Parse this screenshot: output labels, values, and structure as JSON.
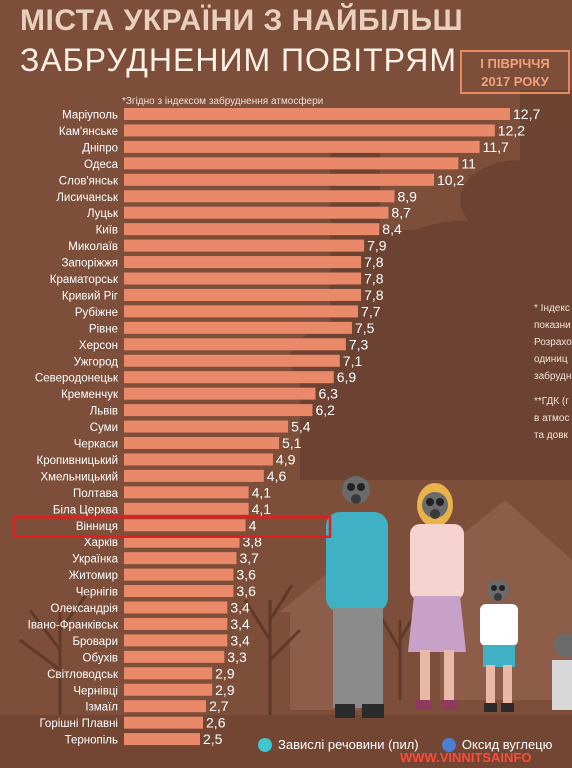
{
  "header": {
    "title_line1": "МІСТА УКРАЇНИ З НАЙБІЛЬШ",
    "title_line2": "ЗАБРУДНЕНИМ ПОВІТРЯМ",
    "badge_line1": "І ПІВРІЧЧЯ",
    "badge_line2": "2017 РОКУ",
    "note": "*Згідно з індексом забруднення атмосфери"
  },
  "side_notes": [
    "* Індекс",
    "показни",
    "Розрахо",
    "одиниц",
    "забрудн",
    "**ГДК (г",
    "в атмос",
    "та довк"
  ],
  "legend": {
    "items": [
      {
        "label": "Завислі речовини (пил)",
        "color": "#3fc6cf"
      },
      {
        "label": "Оксид вуглецю",
        "color": "#4b7fd1"
      }
    ]
  },
  "watermark": "WWW.VINNITSAINFO",
  "colors": {
    "bar": "#e9896a",
    "background": "#7d4f3a",
    "highlight": "#e01e1e",
    "text": "#ffffff"
  },
  "highlight_index": 25,
  "chart_data": {
    "type": "bar",
    "orientation": "horizontal",
    "categories": [
      "Маріуполь",
      "Кам'янське",
      "Дніпро",
      "Одеса",
      "Слов'янськ",
      "Лисичанськ",
      "Луцьк",
      "Київ",
      "Миколаїв",
      "Запоріжжя",
      "Краматорськ",
      "Кривий Ріг",
      "Рубіжне",
      "Рівне",
      "Херсон",
      "Ужгород",
      "Северодонецьк",
      "Кременчук",
      "Львів",
      "Суми",
      "Черкаси",
      "Кропивницький",
      "Хмельницький",
      "Полтава",
      "Біла Церква",
      "Вінниця",
      "Харків",
      "Українка",
      "Житомир",
      "Чернігів",
      "Олександрія",
      "Івано-Франківськ",
      "Бровари",
      "Обухів",
      "Світловодськ",
      "Чернівці",
      "Ізмаїл",
      "Горішні Плавні",
      "Тернопіль"
    ],
    "values": [
      12.7,
      12.2,
      11.7,
      11,
      10.2,
      8.9,
      8.7,
      8.4,
      7.9,
      7.8,
      7.8,
      7.8,
      7.7,
      7.5,
      7.3,
      7.1,
      6.9,
      6.3,
      6.2,
      5.4,
      5.1,
      4.9,
      4.6,
      4.1,
      4.1,
      4,
      3.8,
      3.7,
      3.6,
      3.6,
      3.4,
      3.4,
      3.4,
      3.3,
      2.9,
      2.9,
      2.7,
      2.6,
      2.5
    ],
    "labels": [
      "12,7",
      "12,2",
      "11,7",
      "11",
      "10,2",
      "8,9",
      "8,7",
      "8,4",
      "7,9",
      "7,8",
      "7,8",
      "7,8",
      "7,7",
      "7,5",
      "7,3",
      "7,1",
      "6,9",
      "6,3",
      "6,2",
      "5,4",
      "5,1",
      "4,9",
      "4,6",
      "4,1",
      "4,1",
      "4",
      "3,8",
      "3,7",
      "3,6",
      "3,6",
      "3,4",
      "3,4",
      "3,4",
      "3,3",
      "2,9",
      "2,9",
      "2,7",
      "2,6",
      "2,5"
    ],
    "xlim": [
      0,
      12.7
    ]
  }
}
